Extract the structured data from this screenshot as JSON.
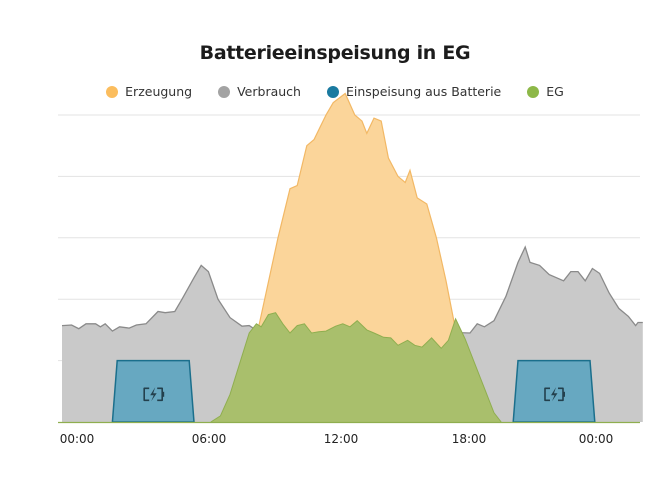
{
  "chart_data": {
    "type": "area",
    "title": "Batterieeinspeisung in EG",
    "xlabel": "",
    "ylabel": "",
    "x_ticks": [
      "00:00",
      "06:00",
      "12:00",
      "18:00",
      "00:00"
    ],
    "x_tick_hours": [
      0,
      6,
      12,
      18,
      24
    ],
    "y_gridlines": [
      0,
      1,
      2,
      3,
      4,
      5
    ],
    "y_tick_labels_visible": false,
    "ylim": [
      0,
      5
    ],
    "xlim_hours": [
      0,
      24
    ],
    "legend_position": "top",
    "grid": true,
    "series": [
      {
        "name": "Erzeugung",
        "color": "#fbd59a",
        "stroke": "#f2b865",
        "points": [
          [
            7.5,
            0
          ],
          [
            8.0,
            1.2
          ],
          [
            8.5,
            2.1
          ],
          [
            9.0,
            3.0
          ],
          [
            9.5,
            3.8
          ],
          [
            9.8,
            3.85
          ],
          [
            10.2,
            4.5
          ],
          [
            10.5,
            4.6
          ],
          [
            11.0,
            5.0
          ],
          [
            11.3,
            5.2
          ],
          [
            11.8,
            5.35
          ],
          [
            12.2,
            5.0
          ],
          [
            12.5,
            4.9
          ],
          [
            12.7,
            4.7
          ],
          [
            13.0,
            4.95
          ],
          [
            13.3,
            4.9
          ],
          [
            13.6,
            4.3
          ],
          [
            14.0,
            4.0
          ],
          [
            14.3,
            3.9
          ],
          [
            14.5,
            4.1
          ],
          [
            14.8,
            3.65
          ],
          [
            15.2,
            3.55
          ],
          [
            15.6,
            3.0
          ],
          [
            16.0,
            2.3
          ],
          [
            16.4,
            1.5
          ],
          [
            16.8,
            0.9
          ],
          [
            17.2,
            0.5
          ],
          [
            17.6,
            0.2
          ],
          [
            18.0,
            0
          ]
        ]
      },
      {
        "name": "Verbrauch",
        "color": "#c9c9c9",
        "stroke": "#8a8a8a",
        "points": [
          [
            0,
            1.57
          ],
          [
            0.4,
            1.58
          ],
          [
            0.7,
            1.52
          ],
          [
            1.0,
            1.6
          ],
          [
            1.4,
            1.6
          ],
          [
            1.6,
            1.55
          ],
          [
            1.8,
            1.6
          ],
          [
            2.1,
            1.48
          ],
          [
            2.4,
            1.55
          ],
          [
            2.8,
            1.53
          ],
          [
            3.1,
            1.58
          ],
          [
            3.5,
            1.6
          ],
          [
            4.0,
            1.8
          ],
          [
            4.3,
            1.78
          ],
          [
            4.7,
            1.8
          ],
          [
            5.0,
            2.0
          ],
          [
            5.5,
            2.35
          ],
          [
            5.8,
            2.55
          ],
          [
            6.1,
            2.45
          ],
          [
            6.5,
            2.0
          ],
          [
            7.0,
            1.7
          ],
          [
            7.5,
            1.56
          ],
          [
            7.8,
            1.57
          ],
          [
            8.0,
            1.52
          ],
          [
            8.5,
            1.55
          ],
          [
            9.0,
            1.55
          ],
          [
            17.0,
            1.45
          ],
          [
            17.3,
            1.6
          ],
          [
            17.6,
            1.55
          ],
          [
            18.0,
            1.65
          ],
          [
            18.5,
            2.05
          ],
          [
            19.0,
            2.6
          ],
          [
            19.3,
            2.85
          ],
          [
            19.5,
            2.6
          ],
          [
            19.9,
            2.55
          ],
          [
            20.3,
            2.4
          ],
          [
            20.6,
            2.35
          ],
          [
            20.9,
            2.3
          ],
          [
            21.2,
            2.45
          ],
          [
            21.5,
            2.45
          ],
          [
            21.8,
            2.3
          ],
          [
            22.1,
            2.5
          ],
          [
            22.4,
            2.42
          ],
          [
            22.8,
            2.1
          ],
          [
            23.2,
            1.85
          ],
          [
            23.6,
            1.72
          ],
          [
            23.9,
            1.57
          ],
          [
            24.0,
            1.62
          ],
          [
            24.2,
            1.62
          ]
        ]
      },
      {
        "name": "Einspeisung aus Batterie",
        "color": "#67a8c1",
        "stroke": "#1b6f8c",
        "blocks": [
          {
            "x_start": 2.1,
            "x_top_start": 2.3,
            "x_top_end": 5.3,
            "x_end": 5.5,
            "height": 1.0
          },
          {
            "x_start": 18.8,
            "x_top_start": 19.0,
            "x_top_end": 22.0,
            "x_end": 22.2,
            "height": 1.0
          }
        ],
        "icon": "battery-charging-icon"
      },
      {
        "name": "EG",
        "color": "#a9bf6c",
        "stroke": "#8fae4f",
        "points": [
          [
            6.2,
            0
          ],
          [
            6.6,
            0.1
          ],
          [
            7.0,
            0.45
          ],
          [
            7.4,
            0.95
          ],
          [
            7.8,
            1.45
          ],
          [
            8.1,
            1.6
          ],
          [
            8.3,
            1.55
          ],
          [
            8.6,
            1.75
          ],
          [
            8.9,
            1.78
          ],
          [
            9.2,
            1.6
          ],
          [
            9.5,
            1.45
          ],
          [
            9.8,
            1.57
          ],
          [
            10.1,
            1.6
          ],
          [
            10.4,
            1.45
          ],
          [
            10.7,
            1.47
          ],
          [
            11.0,
            1.48
          ],
          [
            11.4,
            1.56
          ],
          [
            11.7,
            1.6
          ],
          [
            12.0,
            1.55
          ],
          [
            12.3,
            1.65
          ],
          [
            12.7,
            1.5
          ],
          [
            13.0,
            1.45
          ],
          [
            13.4,
            1.38
          ],
          [
            13.7,
            1.37
          ],
          [
            14.0,
            1.25
          ],
          [
            14.4,
            1.33
          ],
          [
            14.7,
            1.25
          ],
          [
            15.0,
            1.22
          ],
          [
            15.4,
            1.37
          ],
          [
            15.8,
            1.2
          ],
          [
            16.1,
            1.33
          ],
          [
            16.4,
            1.68
          ],
          [
            16.8,
            1.35
          ],
          [
            17.2,
            0.95
          ],
          [
            17.6,
            0.55
          ],
          [
            18.0,
            0.15
          ],
          [
            18.3,
            0
          ]
        ]
      }
    ]
  },
  "header": {
    "title": "Batterieeinspeisung in EG"
  },
  "legend": [
    {
      "label": "Erzeugung",
      "color": "#fbbd5e"
    },
    {
      "label": "Verbrauch",
      "color": "#a3a3a3"
    },
    {
      "label": "Einspeisung aus Batterie",
      "color": "#1a7aa0"
    },
    {
      "label": "EG",
      "color": "#8db848"
    }
  ],
  "x_axis": {
    "labels": [
      "00:00",
      "06:00",
      "12:00",
      "18:00",
      "00:00"
    ]
  }
}
